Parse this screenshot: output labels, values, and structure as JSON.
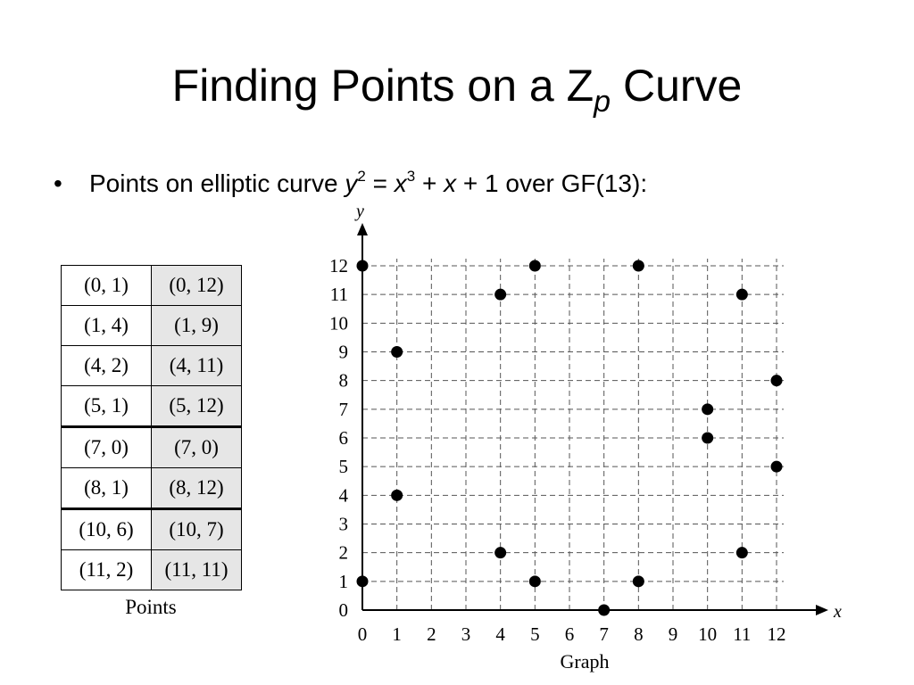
{
  "slide": {
    "title_main": "Finding Points on a Z",
    "title_sub": "p",
    "title_end": " Curve",
    "bullet_symbol": "•",
    "bullet": {
      "t1": "Points on elliptic curve ",
      "y": "y",
      "sup1": "2",
      "t2": " = ",
      "x1": "x",
      "sup2": "3",
      "t3": " + ",
      "x2": "x",
      "t4": " + 1 over GF(13):"
    }
  },
  "table": {
    "rows": [
      [
        "(0, 1)",
        "(0, 12)"
      ],
      [
        "(1, 4)",
        "(1, 9)"
      ],
      [
        "(4, 2)",
        "(4, 11)"
      ],
      [
        "(5, 1)",
        "(5, 12)"
      ],
      [
        "(7, 0)",
        "(7, 0)"
      ],
      [
        "(8, 1)",
        "(8, 12)"
      ],
      [
        "(10, 6)",
        "(10, 7)"
      ],
      [
        "(11, 2)",
        "(11, 11)"
      ]
    ],
    "caption": "Points"
  },
  "chart_data": {
    "type": "scatter",
    "xlabel": "x",
    "ylabel": "y",
    "caption": "Graph",
    "xlim": [
      0,
      12
    ],
    "ylim": [
      0,
      12
    ],
    "x_ticks": [
      0,
      1,
      2,
      3,
      4,
      5,
      6,
      7,
      8,
      9,
      10,
      11,
      12
    ],
    "y_ticks": [
      0,
      1,
      2,
      3,
      4,
      5,
      6,
      7,
      8,
      9,
      10,
      11,
      12
    ],
    "grid": true,
    "marker_color": "#000000",
    "points": [
      [
        0,
        1
      ],
      [
        0,
        12
      ],
      [
        1,
        4
      ],
      [
        1,
        9
      ],
      [
        4,
        2
      ],
      [
        4,
        11
      ],
      [
        5,
        1
      ],
      [
        5,
        12
      ],
      [
        7,
        0
      ],
      [
        8,
        1
      ],
      [
        8,
        12
      ],
      [
        10,
        6
      ],
      [
        10,
        7
      ],
      [
        11,
        2
      ],
      [
        11,
        11
      ],
      [
        12,
        5
      ],
      [
        12,
        8
      ]
    ]
  }
}
